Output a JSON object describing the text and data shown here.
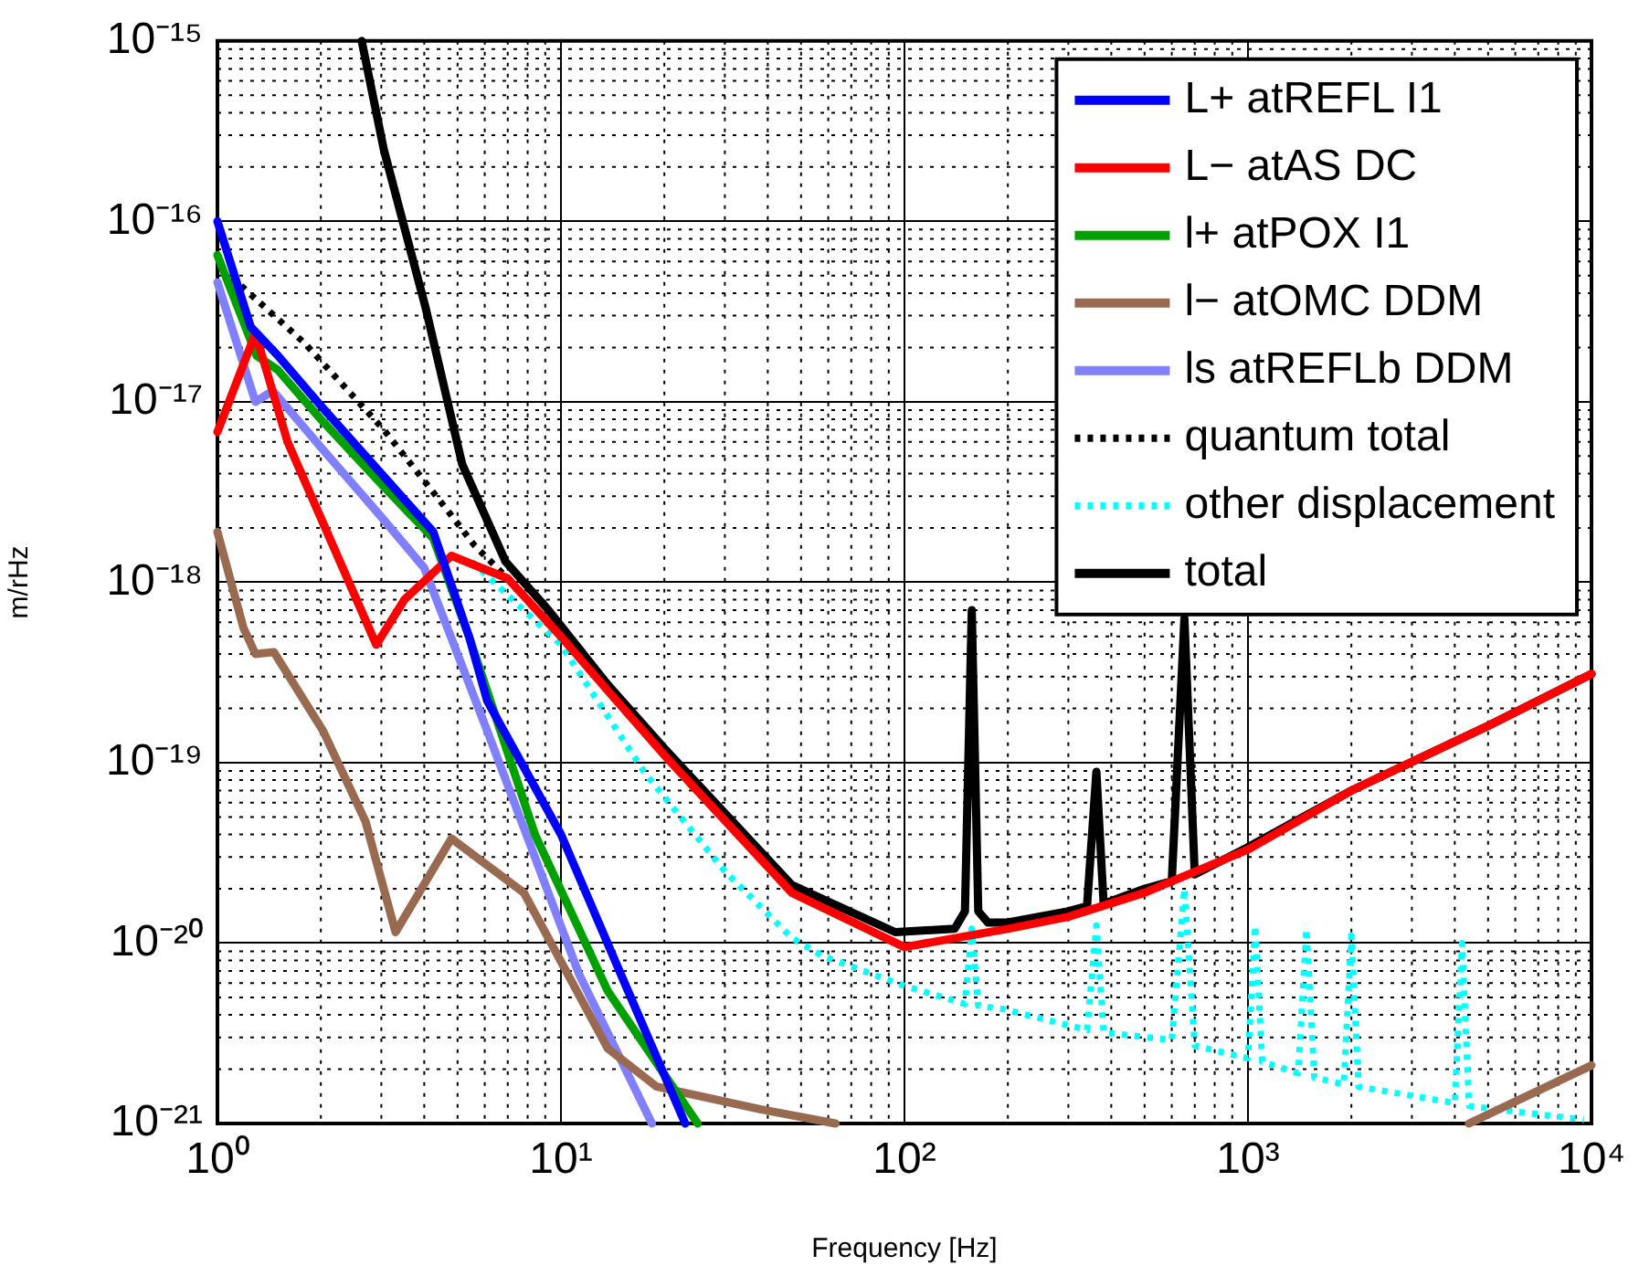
{
  "chart_data": {
    "type": "line",
    "xlabel": "Frequency [Hz]",
    "ylabel": "m/rHz",
    "log": "xy",
    "grid": true,
    "legend": "top right",
    "marker": "none",
    "xlim": [
      1,
      10000
    ],
    "ylim": [
      1e-21,
      1e-15
    ],
    "xticks": [
      {
        "value": 1,
        "label": "10⁰"
      },
      {
        "value": 10,
        "label": "10¹"
      },
      {
        "value": 100,
        "label": "10²"
      },
      {
        "value": 1000,
        "label": "10³"
      },
      {
        "value": 10000,
        "label": "10⁴"
      }
    ],
    "yticks": [
      {
        "value": 1e-21,
        "label": "10⁻²¹"
      },
      {
        "value": 1e-20,
        "label": "10⁻²⁰"
      },
      {
        "value": 1e-19,
        "label": "10⁻¹⁹"
      },
      {
        "value": 1e-18,
        "label": "10⁻¹⁸"
      },
      {
        "value": 1e-17,
        "label": "10⁻¹⁷"
      },
      {
        "value": 1e-16,
        "label": "10⁻¹⁶"
      },
      {
        "value": 1e-15,
        "label": "10⁻¹⁵"
      }
    ],
    "series": [
      {
        "name": "L+ atREFL I1",
        "color": "#0000ff",
        "line_style": "solid",
        "x": [
          1,
          1.25,
          1.5,
          2,
          3,
          4.25,
          5.4,
          6.1,
          10,
          15,
          23
        ],
        "values": [
          1e-16,
          2.6e-17,
          1.8e-17,
          9.5e-18,
          4e-18,
          1.9e-18,
          5e-19,
          2.2e-19,
          4e-20,
          6.6e-21,
          1e-21
        ]
      },
      {
        "name": "L− atAS DC",
        "color": "#ff0000",
        "line_style": "solid",
        "x": [
          1,
          1.29,
          1.6,
          2.2,
          2.9,
          3.5,
          4.8,
          7,
          10,
          13.7,
          20,
          47,
          100,
          200,
          300,
          500,
          1000,
          2000,
          5000,
          10000
        ],
        "values": [
          6.8e-18,
          2.4e-17,
          6e-18,
          1.5e-18,
          4.5e-19,
          8e-19,
          1.4e-18,
          1.05e-18,
          5e-19,
          2.5e-19,
          1.1e-19,
          1.9e-20,
          9.5e-21,
          1.2e-20,
          1.4e-20,
          1.9e-20,
          3.3e-20,
          7e-20,
          1.6e-19,
          3.1e-19
        ]
      },
      {
        "name": "l+ atPOX I1",
        "color": "#00a000",
        "line_style": "solid",
        "x": [
          1,
          1.3,
          1.5,
          2,
          3,
          4.25,
          5.4,
          8.4,
          13.7,
          25
        ],
        "values": [
          6.5e-17,
          1.8e-17,
          1.5e-17,
          8e-18,
          3.5e-18,
          1.75e-18,
          5e-19,
          4e-20,
          5.4e-21,
          1e-21
        ]
      },
      {
        "name": "l− atOMC DDM",
        "color": "#9a6a50",
        "line_style": "solid",
        "x": [
          1,
          1.19,
          1.29,
          1.46,
          2.03,
          2.7,
          3.3,
          4.8,
          7.8,
          13.7,
          19,
          38,
          63,
          1000,
          4400,
          10000
        ],
        "values": [
          1.9e-18,
          5.6e-19,
          4e-19,
          4.1e-19,
          1.5e-19,
          4.7e-20,
          1.15e-20,
          3.8e-20,
          1.9e-20,
          2.6e-21,
          1.6e-21,
          1.2e-21,
          1e-21,
          null,
          1e-21,
          2.1e-21
        ]
      },
      {
        "name": "ls atREFLb DDM",
        "color": "#8080ff",
        "line_style": "solid",
        "x": [
          1,
          1.29,
          1.45,
          2,
          3,
          4,
          6.1,
          11.3,
          18.4
        ],
        "values": [
          4.6e-17,
          1e-17,
          1.15e-17,
          5.6e-18,
          2.3e-18,
          1.2e-18,
          1.5e-19,
          6.7e-21,
          1e-21
        ]
      },
      {
        "name": "quantum total",
        "color": "#000000",
        "line_style": "dotted",
        "x": [
          1.1,
          1.8,
          3.05,
          4.6,
          5.6,
          7,
          10,
          13.7,
          20,
          47,
          100,
          200,
          300,
          500,
          1000,
          2000,
          5000,
          10000
        ],
        "values": [
          4.9e-17,
          2.1e-17,
          7e-18,
          2.6e-18,
          1.6e-18,
          1.05e-18,
          5e-19,
          2.5e-19,
          1.1e-19,
          1.9e-20,
          9.5e-21,
          1.2e-20,
          1.4e-20,
          1.9e-20,
          3.3e-20,
          7e-20,
          1.6e-19,
          3.1e-19
        ]
      },
      {
        "name": "other displacement",
        "color": "#00ffff",
        "line_style": "dotted",
        "x": [
          5.5,
          10,
          17.6,
          30,
          47,
          57.6,
          100,
          150,
          157,
          164,
          195,
          340,
          362,
          380,
          600,
          653,
          700,
          1000,
          1050,
          1100,
          1400,
          1480,
          1560,
          1900,
          2000,
          2100,
          4000,
          4200,
          4400,
          9500
        ],
        "values": [
          1.3e-18,
          4.5e-19,
          8.7e-20,
          2.5e-20,
          1.07e-20,
          8.5e-21,
          5.8e-21,
          4.6e-21,
          1.2e-20,
          4.5e-21,
          4.3e-21,
          3.3e-21,
          1.25e-20,
          3.2e-21,
          2.9e-21,
          2e-20,
          2.7e-21,
          2.3e-21,
          1.25e-20,
          2.2e-21,
          1.9e-21,
          1.2e-20,
          1.8e-21,
          1.65e-21,
          1.1e-20,
          1.6e-21,
          1.3e-21,
          1e-20,
          1.25e-21,
          1.05e-21
        ]
      },
      {
        "name": "total",
        "color": "#000000",
        "line_style": "solid",
        "x": [
          2.63,
          3.05,
          4.04,
          5.16,
          6.9,
          9.2,
          13.7,
          20,
          47,
          94,
          140,
          150,
          157,
          164,
          175,
          200,
          300,
          340,
          362,
          380,
          500,
          600,
          653,
          700,
          1000,
          2000,
          5000,
          10000
        ],
        "values": [
          1e-15,
          2.5e-16,
          3.3e-17,
          4.5e-18,
          1.3e-18,
          7e-19,
          2.7e-19,
          1.2e-19,
          2.1e-20,
          1.15e-20,
          1.2e-20,
          1.5e-20,
          7e-19,
          1.5e-20,
          1.3e-20,
          1.3e-20,
          1.5e-20,
          1.6e-20,
          8.9e-20,
          1.65e-20,
          2e-20,
          2.2e-20,
          6.3e-19,
          2.4e-20,
          3.4e-20,
          7e-20,
          1.6e-19,
          3.1e-19
        ]
      }
    ]
  }
}
